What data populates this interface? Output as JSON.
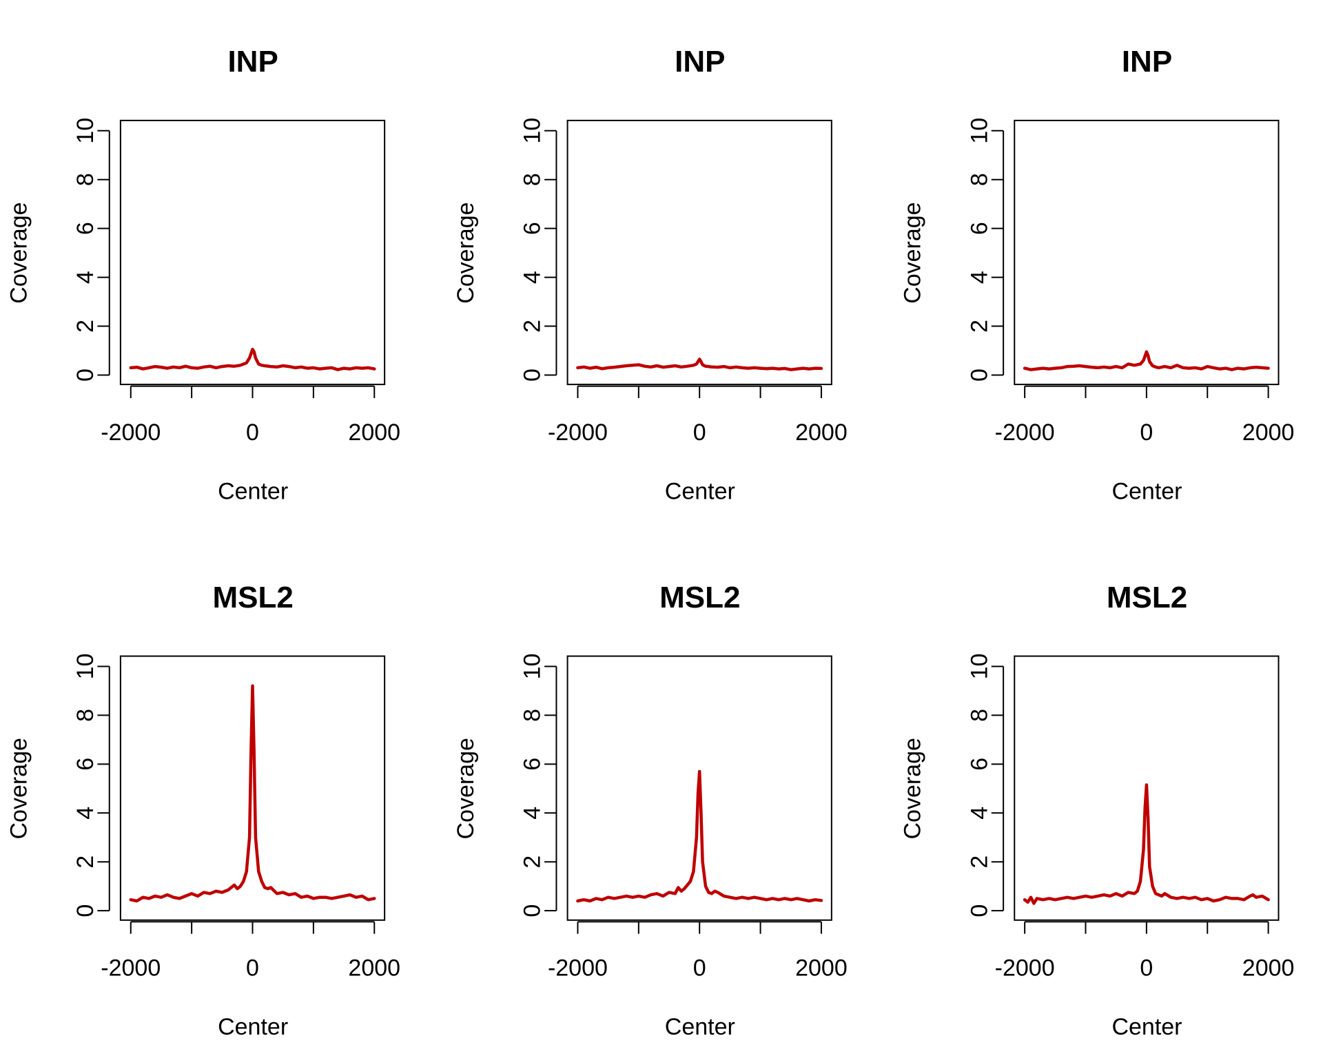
{
  "colors": {
    "series": "#C00000",
    "axis": "#000000",
    "background": "#FFFFFF"
  },
  "chart_data": [
    {
      "type": "line",
      "title": "INP",
      "xlabel": "Center",
      "ylabel": "Coverage",
      "xlim": [
        -2000,
        2000
      ],
      "ylim": [
        0,
        10
      ],
      "xticks": [
        -2000,
        -1000,
        0,
        1000,
        2000
      ],
      "xtick_labels": [
        "-2000",
        "",
        "0",
        "",
        "2000"
      ],
      "yticks": [
        0,
        2,
        4,
        6,
        8,
        10
      ],
      "ytick_labels": [
        "0",
        "2",
        "4",
        "6",
        "8",
        "10"
      ],
      "series": [
        {
          "x": [
            -2000,
            -1900,
            -1800,
            -1700,
            -1600,
            -1500,
            -1400,
            -1300,
            -1200,
            -1100,
            -1000,
            -900,
            -800,
            -700,
            -600,
            -500,
            -400,
            -300,
            -200,
            -100,
            -50,
            0,
            25,
            50,
            100,
            150,
            200,
            300,
            400,
            500,
            600,
            700,
            800,
            900,
            1000,
            1100,
            1200,
            1300,
            1400,
            1500,
            1600,
            1700,
            1800,
            1900,
            2000
          ],
          "y": [
            0.3,
            0.32,
            0.25,
            0.3,
            0.35,
            0.32,
            0.28,
            0.33,
            0.3,
            0.36,
            0.3,
            0.28,
            0.33,
            0.36,
            0.3,
            0.35,
            0.38,
            0.36,
            0.4,
            0.5,
            0.7,
            1.05,
            0.95,
            0.7,
            0.45,
            0.4,
            0.38,
            0.35,
            0.33,
            0.38,
            0.35,
            0.3,
            0.33,
            0.28,
            0.3,
            0.25,
            0.28,
            0.3,
            0.22,
            0.28,
            0.25,
            0.3,
            0.28,
            0.3,
            0.25
          ]
        }
      ]
    },
    {
      "type": "line",
      "title": "INP",
      "xlabel": "Center",
      "ylabel": "Coverage",
      "xlim": [
        -2000,
        2000
      ],
      "ylim": [
        0,
        10
      ],
      "xticks": [
        -2000,
        -1000,
        0,
        1000,
        2000
      ],
      "xtick_labels": [
        "-2000",
        "",
        "0",
        "",
        "2000"
      ],
      "yticks": [
        0,
        2,
        4,
        6,
        8,
        10
      ],
      "ytick_labels": [
        "0",
        "2",
        "4",
        "6",
        "8",
        "10"
      ],
      "series": [
        {
          "x": [
            -2000,
            -1900,
            -1800,
            -1700,
            -1600,
            -1500,
            -1400,
            -1300,
            -1200,
            -1100,
            -1000,
            -900,
            -800,
            -700,
            -600,
            -500,
            -400,
            -300,
            -200,
            -100,
            -50,
            0,
            25,
            50,
            100,
            150,
            200,
            300,
            400,
            500,
            600,
            700,
            800,
            900,
            1000,
            1100,
            1200,
            1300,
            1400,
            1500,
            1600,
            1700,
            1800,
            1900,
            2000
          ],
          "y": [
            0.3,
            0.33,
            0.28,
            0.32,
            0.26,
            0.3,
            0.32,
            0.35,
            0.38,
            0.4,
            0.42,
            0.36,
            0.33,
            0.38,
            0.32,
            0.35,
            0.38,
            0.33,
            0.36,
            0.4,
            0.45,
            0.65,
            0.55,
            0.42,
            0.36,
            0.35,
            0.33,
            0.32,
            0.35,
            0.3,
            0.33,
            0.3,
            0.28,
            0.3,
            0.28,
            0.26,
            0.28,
            0.25,
            0.27,
            0.22,
            0.25,
            0.28,
            0.25,
            0.28,
            0.27
          ]
        }
      ]
    },
    {
      "type": "line",
      "title": "INP",
      "xlabel": "Center",
      "ylabel": "Coverage",
      "xlim": [
        -2000,
        2000
      ],
      "ylim": [
        0,
        10
      ],
      "xticks": [
        -2000,
        -1000,
        0,
        1000,
        2000
      ],
      "xtick_labels": [
        "-2000",
        "",
        "0",
        "",
        "2000"
      ],
      "yticks": [
        0,
        2,
        4,
        6,
        8,
        10
      ],
      "ytick_labels": [
        "0",
        "2",
        "4",
        "6",
        "8",
        "10"
      ],
      "series": [
        {
          "x": [
            -2000,
            -1900,
            -1800,
            -1700,
            -1600,
            -1500,
            -1400,
            -1300,
            -1200,
            -1100,
            -1000,
            -900,
            -800,
            -700,
            -600,
            -500,
            -400,
            -300,
            -200,
            -100,
            -50,
            0,
            25,
            50,
            100,
            150,
            200,
            300,
            400,
            500,
            600,
            700,
            800,
            900,
            1000,
            1100,
            1200,
            1300,
            1400,
            1500,
            1600,
            1700,
            1800,
            1900,
            2000
          ],
          "y": [
            0.28,
            0.22,
            0.25,
            0.28,
            0.25,
            0.28,
            0.3,
            0.35,
            0.36,
            0.38,
            0.35,
            0.32,
            0.3,
            0.33,
            0.3,
            0.35,
            0.3,
            0.45,
            0.4,
            0.45,
            0.6,
            0.95,
            0.8,
            0.55,
            0.38,
            0.33,
            0.3,
            0.35,
            0.3,
            0.4,
            0.3,
            0.28,
            0.3,
            0.25,
            0.35,
            0.3,
            0.25,
            0.28,
            0.22,
            0.28,
            0.25,
            0.3,
            0.32,
            0.3,
            0.28
          ]
        }
      ]
    },
    {
      "type": "line",
      "title": "MSL2",
      "xlabel": "Center",
      "ylabel": "Coverage",
      "xlim": [
        -2000,
        2000
      ],
      "ylim": [
        0,
        10
      ],
      "xticks": [
        -2000,
        -1000,
        0,
        1000,
        2000
      ],
      "xtick_labels": [
        "-2000",
        "",
        "0",
        "",
        "2000"
      ],
      "yticks": [
        0,
        2,
        4,
        6,
        8,
        10
      ],
      "ytick_labels": [
        "0",
        "2",
        "4",
        "6",
        "8",
        "10"
      ],
      "series": [
        {
          "x": [
            -2000,
            -1900,
            -1800,
            -1700,
            -1600,
            -1500,
            -1400,
            -1300,
            -1200,
            -1100,
            -1000,
            -900,
            -800,
            -700,
            -600,
            -500,
            -400,
            -300,
            -250,
            -200,
            -150,
            -100,
            -50,
            -25,
            0,
            25,
            50,
            100,
            150,
            200,
            250,
            300,
            400,
            500,
            600,
            700,
            800,
            900,
            1000,
            1100,
            1200,
            1300,
            1400,
            1500,
            1600,
            1700,
            1800,
            1900,
            2000
          ],
          "y": [
            0.45,
            0.4,
            0.55,
            0.5,
            0.6,
            0.55,
            0.65,
            0.55,
            0.5,
            0.6,
            0.7,
            0.6,
            0.75,
            0.7,
            0.8,
            0.75,
            0.85,
            1.05,
            0.9,
            1.0,
            1.2,
            1.6,
            3.0,
            6.5,
            9.2,
            6.5,
            3.0,
            1.6,
            1.2,
            0.95,
            0.9,
            0.95,
            0.7,
            0.75,
            0.65,
            0.7,
            0.55,
            0.6,
            0.5,
            0.55,
            0.55,
            0.5,
            0.55,
            0.6,
            0.65,
            0.55,
            0.6,
            0.45,
            0.5
          ]
        }
      ]
    },
    {
      "type": "line",
      "title": "MSL2",
      "xlabel": "Center",
      "ylabel": "Coverage",
      "xlim": [
        -2000,
        2000
      ],
      "ylim": [
        0,
        10
      ],
      "xticks": [
        -2000,
        -1000,
        0,
        1000,
        2000
      ],
      "xtick_labels": [
        "-2000",
        "",
        "0",
        "",
        "2000"
      ],
      "yticks": [
        0,
        2,
        4,
        6,
        8,
        10
      ],
      "ytick_labels": [
        "0",
        "2",
        "4",
        "6",
        "8",
        "10"
      ],
      "series": [
        {
          "x": [
            -2000,
            -1900,
            -1800,
            -1700,
            -1600,
            -1500,
            -1400,
            -1300,
            -1200,
            -1100,
            -1000,
            -900,
            -800,
            -700,
            -600,
            -500,
            -400,
            -350,
            -300,
            -250,
            -200,
            -150,
            -100,
            -50,
            -25,
            0,
            25,
            50,
            100,
            150,
            200,
            250,
            300,
            400,
            500,
            600,
            700,
            800,
            900,
            1000,
            1100,
            1200,
            1300,
            1400,
            1500,
            1600,
            1700,
            1800,
            1900,
            2000
          ],
          "y": [
            0.4,
            0.45,
            0.4,
            0.5,
            0.45,
            0.55,
            0.5,
            0.55,
            0.6,
            0.55,
            0.6,
            0.55,
            0.65,
            0.7,
            0.6,
            0.75,
            0.7,
            0.95,
            0.8,
            0.9,
            1.05,
            1.2,
            1.6,
            3.0,
            4.8,
            5.7,
            4.0,
            2.0,
            1.0,
            0.75,
            0.7,
            0.8,
            0.75,
            0.6,
            0.55,
            0.5,
            0.55,
            0.5,
            0.55,
            0.5,
            0.45,
            0.5,
            0.45,
            0.5,
            0.45,
            0.5,
            0.45,
            0.4,
            0.45,
            0.42
          ]
        }
      ]
    },
    {
      "type": "line",
      "title": "MSL2",
      "xlabel": "Center",
      "ylabel": "Coverage",
      "xlim": [
        -2000,
        2000
      ],
      "ylim": [
        0,
        10
      ],
      "xticks": [
        -2000,
        -1000,
        0,
        1000,
        2000
      ],
      "xtick_labels": [
        "-2000",
        "",
        "0",
        "",
        "2000"
      ],
      "yticks": [
        0,
        2,
        4,
        6,
        8,
        10
      ],
      "ytick_labels": [
        "0",
        "2",
        "4",
        "6",
        "8",
        "10"
      ],
      "series": [
        {
          "x": [
            -2000,
            -1950,
            -1900,
            -1850,
            -1800,
            -1700,
            -1600,
            -1500,
            -1400,
            -1300,
            -1200,
            -1100,
            -1000,
            -900,
            -800,
            -700,
            -600,
            -500,
            -400,
            -300,
            -200,
            -150,
            -100,
            -50,
            -25,
            0,
            25,
            50,
            100,
            150,
            200,
            250,
            300,
            400,
            500,
            600,
            700,
            800,
            900,
            1000,
            1100,
            1200,
            1300,
            1400,
            1500,
            1600,
            1700,
            1750,
            1800,
            1900,
            2000
          ],
          "y": [
            0.45,
            0.35,
            0.55,
            0.3,
            0.5,
            0.45,
            0.5,
            0.45,
            0.5,
            0.55,
            0.5,
            0.55,
            0.6,
            0.55,
            0.6,
            0.65,
            0.6,
            0.7,
            0.6,
            0.75,
            0.7,
            0.8,
            1.2,
            2.5,
            4.2,
            5.15,
            3.8,
            1.8,
            1.0,
            0.7,
            0.65,
            0.6,
            0.7,
            0.55,
            0.5,
            0.55,
            0.5,
            0.55,
            0.45,
            0.5,
            0.4,
            0.45,
            0.55,
            0.5,
            0.5,
            0.45,
            0.6,
            0.65,
            0.55,
            0.6,
            0.45
          ]
        }
      ]
    }
  ]
}
